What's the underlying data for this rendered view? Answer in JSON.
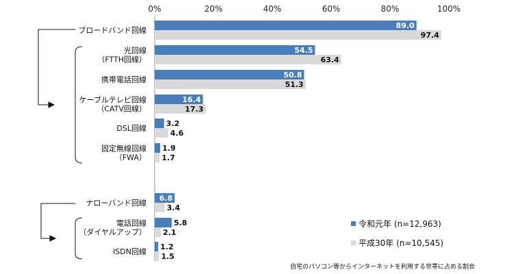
{
  "chart_data": {
    "type": "bar",
    "orientation": "horizontal",
    "xlim": [
      0,
      100
    ],
    "x_ticks": [
      "0%",
      "20%",
      "40%",
      "60%",
      "80%",
      "100%"
    ],
    "categories": [
      "ブロードバンド回線",
      "光回線\n（FTTH回線）",
      "携帯電話回線",
      "ケーブルテレビ回線\n（CATV回線）",
      "DSL回線",
      "固定無線回線\n（FWA）",
      "ナローバンド回線",
      "電話回線\n（ダイヤルアップ）",
      "ISDN回線"
    ],
    "series": [
      {
        "name": "令和元年 (n=12,963)",
        "color": "#4a7ebb",
        "values": [
          89.0,
          54.5,
          50.8,
          16.4,
          3.2,
          1.9,
          6.8,
          5.8,
          1.2
        ]
      },
      {
        "name": "平成30年 (n=10,545)",
        "color": "#d9d9d9",
        "values": [
          97.4,
          63.4,
          51.3,
          17.3,
          4.6,
          1.7,
          3.4,
          2.1,
          1.5
        ]
      }
    ],
    "value_labels": [
      [
        "89.0",
        "54.5",
        "50.8",
        "16.4",
        "3.2",
        "1.9",
        "6.8",
        "5.8",
        "1.2"
      ],
      [
        "97.4",
        "63.4",
        "51.3",
        "17.3",
        "4.6",
        "1.7",
        "3.4",
        "2.1",
        "1.5"
      ]
    ],
    "grid": false,
    "legend_position": "bottom-right",
    "note": "自宅のパソコン等からインターネットを利用する世帯に占める割合"
  }
}
